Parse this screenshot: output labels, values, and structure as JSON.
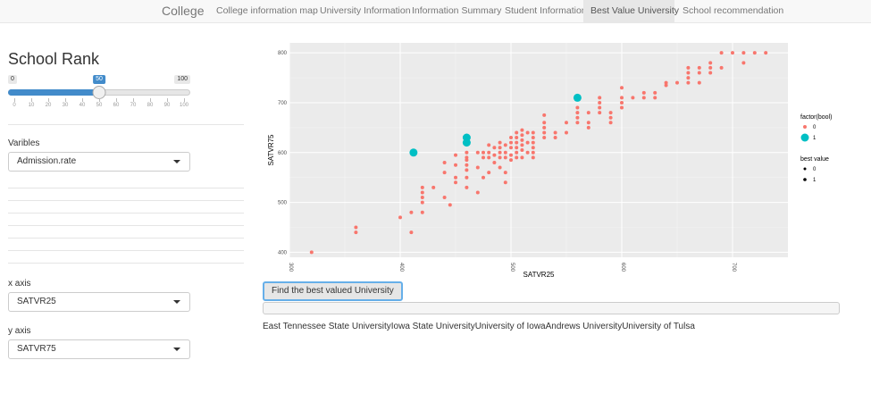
{
  "navbar": {
    "brand": "College",
    "tabs": [
      {
        "label": "College information map"
      },
      {
        "label": "University Information"
      },
      {
        "label": "Information Summary"
      },
      {
        "label": "Student Information"
      },
      {
        "label": "Best Value University",
        "active": true
      },
      {
        "label": "School recommendation"
      }
    ]
  },
  "sidebar": {
    "title": "School Rank",
    "slider": {
      "min": "0",
      "max": "100",
      "value": "50",
      "ticks": [
        "0",
        "10",
        "20",
        "30",
        "40",
        "50",
        "60",
        "70",
        "80",
        "90",
        "100"
      ]
    },
    "variables_label": "Varibles",
    "variables_value": "Admission.rate",
    "x_axis_label": "x axis",
    "x_axis_value": "SATVR25",
    "y_axis_label": "y axis",
    "y_axis_value": "SATVR75"
  },
  "main": {
    "button_label": "Find the best valued University",
    "result_text": "East Tennessee State UniversityIowa State UniversityUniversity of IowaAndrews UniversityUniversity of Tulsa"
  },
  "colors": {
    "red": "#f8766d",
    "teal": "#00bfc4",
    "panel": "#ebebeb",
    "accent": "#428bca"
  },
  "chart_data": {
    "type": "scatter",
    "xlabel": "SATVR25",
    "ylabel": "SATVR75",
    "xlim": [
      300,
      750
    ],
    "ylim": [
      390,
      820
    ],
    "x_ticks": [
      "300",
      "400",
      "500",
      "600",
      "700"
    ],
    "y_ticks": [
      "400",
      "500",
      "600",
      "700",
      "800"
    ],
    "legend": {
      "color_title": "factor(bool)",
      "color_entries": [
        "0",
        "1"
      ],
      "size_title": "best value",
      "size_entries": [
        "0",
        "1"
      ]
    },
    "series": [
      {
        "name": "0",
        "points": [
          [
            320,
            400
          ],
          [
            360,
            440
          ],
          [
            360,
            450
          ],
          [
            400,
            470
          ],
          [
            410,
            440
          ],
          [
            410,
            480
          ],
          [
            420,
            480
          ],
          [
            420,
            500
          ],
          [
            420,
            510
          ],
          [
            420,
            520
          ],
          [
            420,
            530
          ],
          [
            430,
            530
          ],
          [
            440,
            510
          ],
          [
            440,
            560
          ],
          [
            440,
            580
          ],
          [
            445,
            495
          ],
          [
            450,
            540
          ],
          [
            450,
            550
          ],
          [
            450,
            575
          ],
          [
            450,
            595
          ],
          [
            460,
            530
          ],
          [
            460,
            550
          ],
          [
            460,
            565
          ],
          [
            460,
            575
          ],
          [
            460,
            585
          ],
          [
            460,
            590
          ],
          [
            460,
            600
          ],
          [
            470,
            520
          ],
          [
            470,
            570
          ],
          [
            470,
            600
          ],
          [
            475,
            550
          ],
          [
            475,
            590
          ],
          [
            475,
            600
          ],
          [
            480,
            560
          ],
          [
            480,
            590
          ],
          [
            480,
            600
          ],
          [
            480,
            615
          ],
          [
            485,
            580
          ],
          [
            485,
            595
          ],
          [
            485,
            610
          ],
          [
            490,
            570
          ],
          [
            490,
            590
          ],
          [
            490,
            600
          ],
          [
            490,
            610
          ],
          [
            490,
            620
          ],
          [
            495,
            540
          ],
          [
            495,
            560
          ],
          [
            495,
            590
          ],
          [
            495,
            600
          ],
          [
            495,
            615
          ],
          [
            500,
            585
          ],
          [
            500,
            595
          ],
          [
            500,
            610
          ],
          [
            500,
            620
          ],
          [
            500,
            630
          ],
          [
            505,
            590
          ],
          [
            505,
            600
          ],
          [
            505,
            610
          ],
          [
            505,
            620
          ],
          [
            505,
            630
          ],
          [
            505,
            640
          ],
          [
            510,
            590
          ],
          [
            510,
            605
          ],
          [
            510,
            615
          ],
          [
            510,
            625
          ],
          [
            510,
            635
          ],
          [
            510,
            645
          ],
          [
            515,
            600
          ],
          [
            515,
            620
          ],
          [
            515,
            640
          ],
          [
            520,
            590
          ],
          [
            520,
            600
          ],
          [
            520,
            610
          ],
          [
            520,
            620
          ],
          [
            520,
            630
          ],
          [
            520,
            640
          ],
          [
            530,
            630
          ],
          [
            530,
            640
          ],
          [
            530,
            650
          ],
          [
            530,
            660
          ],
          [
            530,
            675
          ],
          [
            540,
            630
          ],
          [
            540,
            640
          ],
          [
            550,
            640
          ],
          [
            550,
            660
          ],
          [
            560,
            660
          ],
          [
            560,
            670
          ],
          [
            560,
            680
          ],
          [
            560,
            690
          ],
          [
            570,
            650
          ],
          [
            570,
            660
          ],
          [
            570,
            680
          ],
          [
            580,
            680
          ],
          [
            580,
            690
          ],
          [
            580,
            700
          ],
          [
            580,
            710
          ],
          [
            590,
            660
          ],
          [
            590,
            670
          ],
          [
            590,
            680
          ],
          [
            600,
            690
          ],
          [
            600,
            700
          ],
          [
            600,
            710
          ],
          [
            600,
            730
          ],
          [
            610,
            710
          ],
          [
            620,
            710
          ],
          [
            620,
            720
          ],
          [
            630,
            710
          ],
          [
            630,
            720
          ],
          [
            640,
            735
          ],
          [
            640,
            740
          ],
          [
            650,
            740
          ],
          [
            660,
            740
          ],
          [
            660,
            750
          ],
          [
            660,
            760
          ],
          [
            660,
            770
          ],
          [
            670,
            740
          ],
          [
            670,
            760
          ],
          [
            670,
            770
          ],
          [
            680,
            760
          ],
          [
            680,
            770
          ],
          [
            680,
            780
          ],
          [
            690,
            770
          ],
          [
            690,
            800
          ],
          [
            700,
            800
          ],
          [
            710,
            780
          ],
          [
            710,
            800
          ],
          [
            720,
            800
          ],
          [
            730,
            800
          ]
        ]
      },
      {
        "name": "1",
        "points": [
          [
            412,
            600
          ],
          [
            460,
            620
          ],
          [
            460,
            630
          ],
          [
            560,
            710
          ]
        ]
      }
    ]
  }
}
